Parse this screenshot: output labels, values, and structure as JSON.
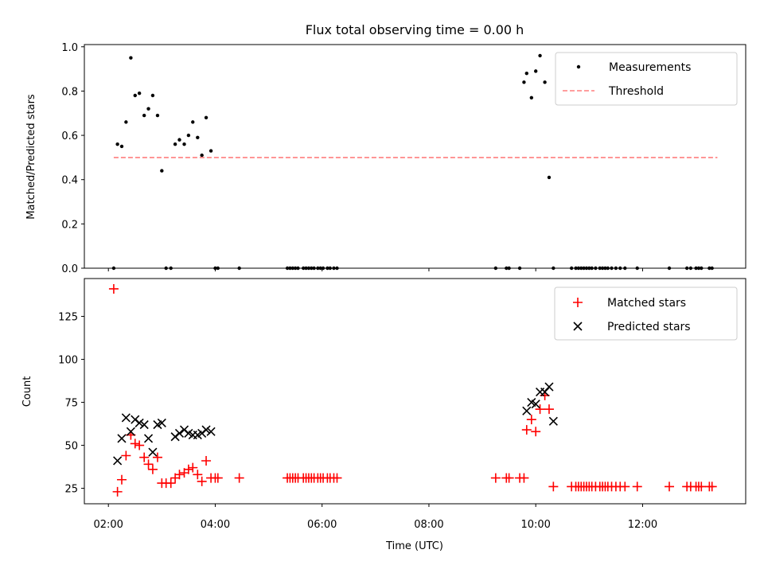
{
  "title": "Flux total observing time = 0.00 h",
  "chart_data": [
    {
      "type": "scatter",
      "ylabel": "Matched/Predicted stars",
      "xlim": [
        1.55,
        13.93
      ],
      "ylim": [
        0,
        1.01
      ],
      "yticks": [
        0.0,
        0.2,
        0.4,
        0.6,
        0.8,
        1.0
      ],
      "ytick_labels": [
        "0.0",
        "0.2",
        "0.4",
        "0.6",
        "0.8",
        "1.0"
      ],
      "legend": [
        "Measurements",
        "Threshold"
      ],
      "legend_position": "top-right",
      "series": [
        {
          "name": "Measurements",
          "color": "#000000",
          "marker": "dot",
          "x": [
            2.1,
            2.17,
            2.25,
            2.33,
            2.42,
            2.5,
            2.58,
            2.67,
            2.75,
            2.83,
            2.92,
            3.0,
            3.08,
            3.17,
            3.25,
            3.33,
            3.42,
            3.5,
            3.58,
            3.67,
            3.75,
            3.83,
            3.92,
            4.0,
            4.05,
            4.45,
            5.35,
            5.4,
            5.45,
            5.5,
            5.55,
            5.65,
            5.7,
            5.75,
            5.8,
            5.85,
            5.92,
            5.97,
            6.02,
            6.1,
            6.15,
            6.22,
            6.28,
            9.25,
            9.45,
            9.5,
            9.7,
            9.78,
            9.83,
            9.92,
            10.0,
            10.08,
            10.17,
            10.25,
            10.33,
            10.67,
            10.75,
            10.8,
            10.85,
            10.9,
            10.95,
            11.0,
            11.05,
            11.12,
            11.2,
            11.25,
            11.3,
            11.35,
            11.42,
            11.5,
            11.58,
            11.67,
            11.9,
            12.5,
            12.83,
            12.9,
            13.0,
            13.05,
            13.1,
            13.25,
            13.3
          ],
          "y": [
            0.0,
            0.56,
            0.55,
            0.66,
            0.95,
            0.78,
            0.79,
            0.69,
            0.72,
            0.78,
            0.69,
            0.44,
            0.0,
            0.0,
            0.56,
            0.58,
            0.56,
            0.6,
            0.66,
            0.59,
            0.51,
            0.68,
            0.53,
            0.0,
            0.0,
            0.0,
            0.0,
            0.0,
            0.0,
            0.0,
            0.0,
            0.0,
            0.0,
            0.0,
            0.0,
            0.0,
            0.0,
            0.0,
            0.0,
            0.0,
            0.0,
            0.0,
            0.0,
            0.0,
            0.0,
            0.0,
            0.0,
            0.84,
            0.88,
            0.77,
            0.89,
            0.96,
            0.84,
            0.41,
            0.0,
            0.0,
            0.0,
            0.0,
            0.0,
            0.0,
            0.0,
            0.0,
            0.0,
            0.0,
            0.0,
            0.0,
            0.0,
            0.0,
            0.0,
            0.0,
            0.0,
            0.0,
            0.0,
            0.0,
            0.0,
            0.0,
            0.0,
            0.0,
            0.0,
            0.0,
            0.0
          ]
        },
        {
          "name": "Threshold",
          "color": "#ff7f7f",
          "style": "dashed",
          "x": [
            2.1,
            13.4
          ],
          "y": [
            0.5,
            0.5
          ]
        }
      ]
    },
    {
      "type": "scatter",
      "xlabel": "Time (UTC)",
      "ylabel": "Count",
      "xlim": [
        1.55,
        13.93
      ],
      "ylim": [
        16,
        147
      ],
      "yticks": [
        25,
        50,
        75,
        100,
        125
      ],
      "ytick_labels": [
        "25",
        "50",
        "75",
        "100",
        "125"
      ],
      "xticks": [
        2,
        4,
        6,
        8,
        10,
        12
      ],
      "xtick_labels": [
        "02:00",
        "04:00",
        "06:00",
        "08:00",
        "10:00",
        "12:00"
      ],
      "legend": [
        "Matched stars",
        "Predicted stars"
      ],
      "legend_position": "top-right",
      "series": [
        {
          "name": "Matched stars",
          "color": "#ff0000",
          "marker": "plus",
          "x": [
            2.1,
            2.17,
            2.25,
            2.33,
            2.42,
            2.5,
            2.58,
            2.67,
            2.75,
            2.83,
            2.92,
            3.0,
            3.08,
            3.17,
            3.25,
            3.33,
            3.42,
            3.5,
            3.58,
            3.67,
            3.75,
            3.83,
            3.92,
            4.0,
            4.05,
            4.45,
            5.35,
            5.4,
            5.45,
            5.5,
            5.55,
            5.65,
            5.7,
            5.75,
            5.8,
            5.85,
            5.92,
            5.97,
            6.02,
            6.1,
            6.15,
            6.22,
            6.28,
            9.25,
            9.45,
            9.5,
            9.7,
            9.78,
            9.83,
            9.92,
            10.0,
            10.08,
            10.17,
            10.25,
            10.33,
            10.67,
            10.75,
            10.8,
            10.85,
            10.9,
            10.95,
            11.0,
            11.05,
            11.12,
            11.2,
            11.25,
            11.3,
            11.35,
            11.42,
            11.5,
            11.58,
            11.67,
            11.9,
            12.5,
            12.83,
            12.9,
            13.0,
            13.05,
            13.1,
            13.25,
            13.3
          ],
          "y": [
            141,
            23,
            30,
            44,
            56,
            51,
            50,
            43,
            39,
            36,
            43,
            28,
            28,
            28,
            31,
            33,
            34,
            36,
            37,
            33,
            29,
            41,
            31,
            31,
            31,
            31,
            31,
            31,
            31,
            31,
            31,
            31,
            31,
            31,
            31,
            31,
            31,
            31,
            31,
            31,
            31,
            31,
            31,
            31,
            31,
            31,
            31,
            31,
            59,
            65,
            58,
            71,
            79,
            71,
            26,
            26,
            26,
            26,
            26,
            26,
            26,
            26,
            26,
            26,
            26,
            26,
            26,
            26,
            26,
            26,
            26,
            26,
            26,
            26,
            26,
            26,
            26,
            26,
            26,
            26,
            26
          ]
        },
        {
          "name": "Predicted stars",
          "color": "#000000",
          "marker": "x",
          "x": [
            2.17,
            2.25,
            2.33,
            2.42,
            2.5,
            2.58,
            2.67,
            2.75,
            2.83,
            2.92,
            3.0,
            3.25,
            3.33,
            3.42,
            3.5,
            3.58,
            3.67,
            3.75,
            3.83,
            3.92,
            9.83,
            9.92,
            10.0,
            10.08,
            10.17,
            10.25,
            10.33
          ],
          "y": [
            41,
            54,
            66,
            58,
            65,
            63,
            62,
            54,
            46,
            62,
            63,
            55,
            57,
            59,
            57,
            56,
            56,
            57,
            59,
            58,
            70,
            75,
            74,
            81,
            81,
            84,
            64
          ]
        }
      ]
    }
  ]
}
